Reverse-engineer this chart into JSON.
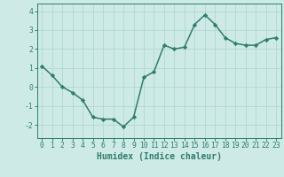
{
  "x": [
    0,
    1,
    2,
    3,
    4,
    5,
    6,
    7,
    8,
    9,
    10,
    11,
    12,
    13,
    14,
    15,
    16,
    17,
    18,
    19,
    20,
    21,
    22,
    23
  ],
  "y": [
    1.1,
    0.6,
    0.0,
    -0.3,
    -0.7,
    -1.6,
    -1.7,
    -1.7,
    -2.1,
    -1.6,
    0.5,
    0.8,
    2.2,
    2.0,
    2.1,
    3.3,
    3.8,
    3.3,
    2.6,
    2.3,
    2.2,
    2.2,
    2.5,
    2.6
  ],
  "line_color": "#2e7d6e",
  "marker": "D",
  "marker_size": 2.2,
  "bg_color": "#ceeae6",
  "grid_color": "#b0d8d2",
  "xlabel": "Humidex (Indice chaleur)",
  "xlabel_fontsize": 7.0,
  "ylim": [
    -2.7,
    4.4
  ],
  "xlim": [
    -0.5,
    23.5
  ],
  "yticks": [
    -2,
    -1,
    0,
    1,
    2,
    3,
    4
  ],
  "xticks": [
    0,
    1,
    2,
    3,
    4,
    5,
    6,
    7,
    8,
    9,
    10,
    11,
    12,
    13,
    14,
    15,
    16,
    17,
    18,
    19,
    20,
    21,
    22,
    23
  ],
  "tick_fontsize": 5.8,
  "tick_color": "#2e7d6e",
  "axis_color": "#2e7d6e",
  "line_width": 1.1
}
